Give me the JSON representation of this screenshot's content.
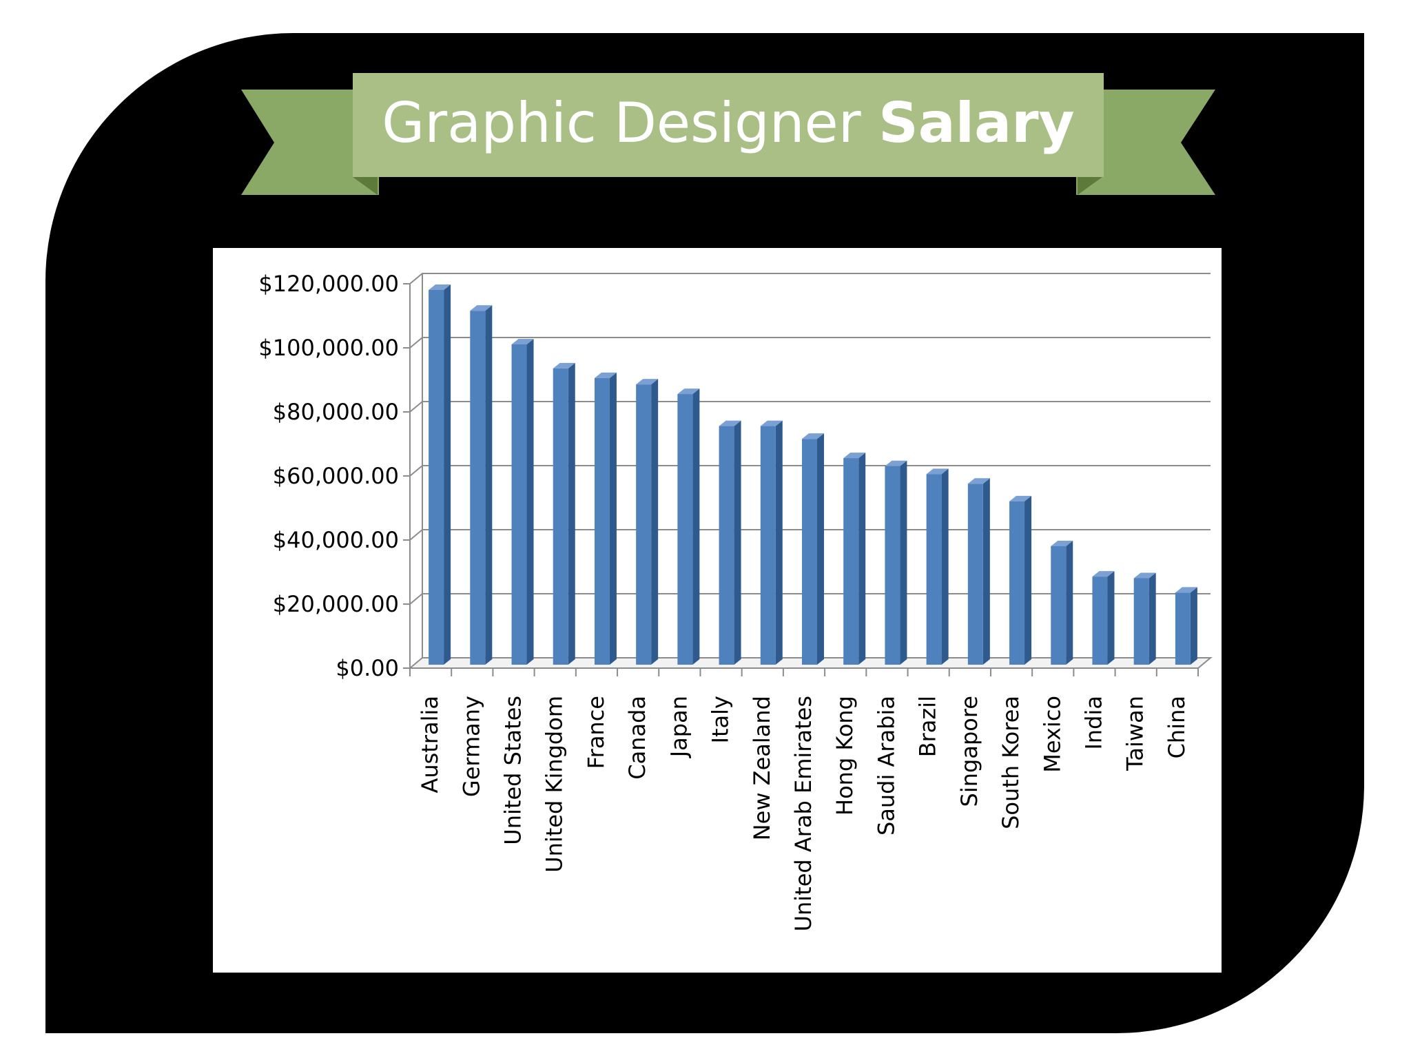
{
  "title": {
    "light": "Graphic Designer ",
    "bold": "Salary"
  },
  "colors": {
    "frame": "#000000",
    "ribbon_main": "#a9bf86",
    "ribbon_tail": "#8aa866",
    "ribbon_fold": "#5d7a3b",
    "bar_face": "#4f81bd",
    "bar_side": "#2f5a8e",
    "bar_top": "#7ba0d4",
    "grid": "#8c8c8c"
  },
  "chart_data": {
    "type": "bar",
    "title": "Graphic Designer Salary",
    "xlabel": "",
    "ylabel": "",
    "ylim": [
      0,
      120000
    ],
    "yticks": [
      0,
      20000,
      40000,
      60000,
      80000,
      100000,
      120000
    ],
    "ytick_labels": [
      "$0.00",
      "$20,000.00",
      "$40,000.00",
      "$60,000.00",
      "$80,000.00",
      "$100,000.00",
      "$120,000.00"
    ],
    "grid": true,
    "legend": "none",
    "categories": [
      "Australia",
      "Germany",
      "United States",
      "United Kingdom",
      "France",
      "Canada",
      "Japan",
      "Italy",
      "New Zealand",
      "United Arab Emirates",
      "Hong Kong",
      "Saudi Arabia",
      "Brazil",
      "Singapore",
      "South Korea",
      "Mexico",
      "India",
      "Taiwan",
      "China"
    ],
    "values": [
      117000,
      110500,
      100000,
      92500,
      89500,
      87500,
      84500,
      74500,
      74500,
      70500,
      64500,
      62000,
      59500,
      56500,
      51000,
      37000,
      27500,
      27000,
      22500
    ]
  }
}
